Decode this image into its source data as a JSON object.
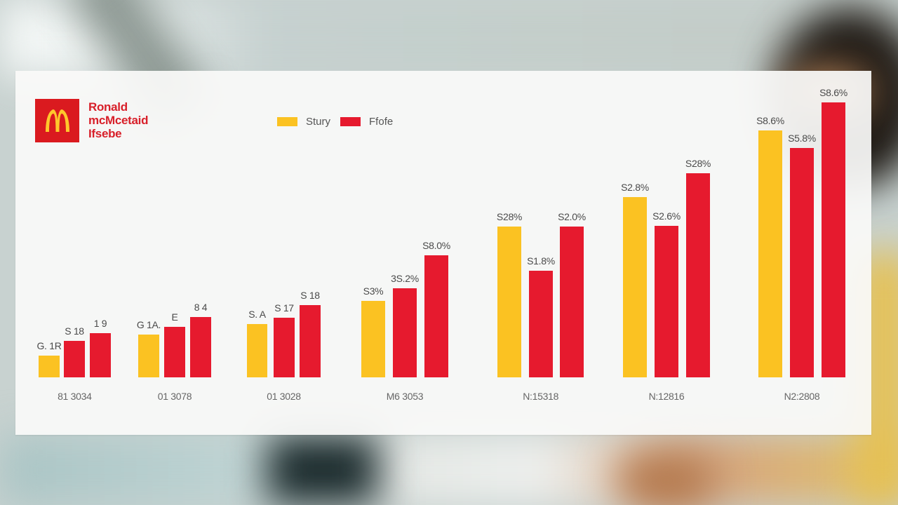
{
  "brand": {
    "logo_icon": "golden-arches-icon",
    "logo_colors": {
      "background": "#da1a1f",
      "arches": "#ffc72c"
    },
    "lines": [
      "Ronald",
      "mcMcetaid",
      "Ifsebe"
    ]
  },
  "legend": [
    {
      "label": "Stury",
      "color": "#fbc222"
    },
    {
      "label": "Ffofe",
      "color": "#e61a2e"
    }
  ],
  "colors": {
    "yellow": "#fbc222",
    "red": "#e61a2e"
  },
  "chart_data": {
    "type": "bar",
    "title": "",
    "xlabel": "",
    "ylabel": "",
    "grid": false,
    "legend_position": "top",
    "categories": [
      "81 3034",
      "01 3078",
      "01 3028",
      "M6 3053",
      "N:15318",
      "N:12816",
      "N2:2808"
    ],
    "series": [
      {
        "name": "Stury",
        "color": "#fbc222",
        "values": [
          31,
          61,
          76,
          109,
          215,
          257,
          352
        ],
        "labels": [
          "G. 1R",
          "G 1A.",
          "S. A",
          "S3%",
          "S28%",
          "S2.8%",
          "S8.6%"
        ]
      },
      {
        "name": "Ffofe",
        "color": "#e61a2e",
        "values": [
          52,
          72,
          85,
          127,
          152,
          216,
          327
        ],
        "labels": [
          "S 18",
          "E",
          "S 17",
          "3S.2%",
          "S1.8%",
          "S2.6%",
          "S5.8%"
        ]
      },
      {
        "name": "Ffofe (2)",
        "color": "#e61a2e",
        "values": [
          63,
          86,
          103,
          174,
          215,
          291,
          392
        ],
        "labels": [
          "1 9",
          "8 4",
          "S 18",
          "S8.0%",
          "S2.0%",
          "S28%",
          "S8.6%"
        ]
      }
    ],
    "ylim": [
      0,
      400
    ],
    "note": "Values are relative bar heights in pixels (no y-axis shown); labels are transcribed as rendered."
  }
}
